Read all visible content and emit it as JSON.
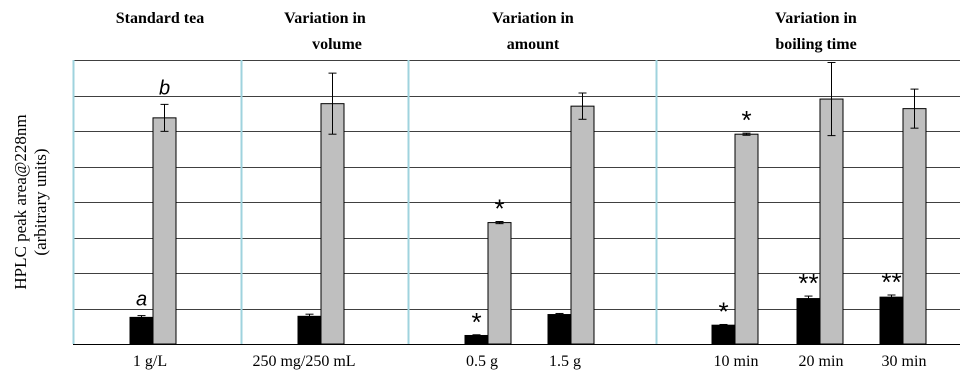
{
  "chart_data": {
    "type": "bar",
    "ylabel_lines": [
      "HPLC peak area@228nm",
      "(arbitrary units)"
    ],
    "ylim": [
      0,
      8
    ],
    "grid": true,
    "gridlines": [
      1,
      2,
      3,
      4,
      5,
      6,
      7,
      8
    ],
    "colors": {
      "black_series": "#000000",
      "gray_series": "#bfbfbf",
      "group_dividers": "#9fd3de",
      "grid": "#000000"
    },
    "groups": [
      {
        "header_lines": [
          "Standard tea"
        ],
        "categories": [
          "1 g/L"
        ]
      },
      {
        "header_lines": [
          "Variation in",
          "volume"
        ],
        "categories": [
          "250 mg/250 mL"
        ]
      },
      {
        "header_lines": [
          "Variation in",
          "amount"
        ],
        "categories": [
          "0.5 g",
          "1.5 g"
        ]
      },
      {
        "header_lines": [
          "Variation in",
          "boiling time"
        ],
        "categories": [
          "10 min",
          "20 min",
          "30 min"
        ]
      }
    ],
    "categories": [
      "1 g/L",
      "250 mg/250 mL",
      "0.5 g",
      "1.5 g",
      "10 min",
      "20 min",
      "30 min"
    ],
    "series": [
      {
        "color": "#000000",
        "values": [
          0.75,
          0.78,
          0.24,
          0.83,
          0.53,
          1.28,
          1.32
        ],
        "errors": [
          0.05,
          0.06,
          0.02,
          0.03,
          0.02,
          0.07,
          0.06
        ],
        "annotations": [
          "a",
          "",
          "*",
          "",
          "*",
          "**",
          "**"
        ]
      },
      {
        "color": "#bfbfbf",
        "values": [
          6.37,
          6.77,
          3.42,
          6.7,
          5.91,
          6.9,
          6.63
        ],
        "errors": [
          0.38,
          0.86,
          0.03,
          0.37,
          0.03,
          1.03,
          0.55
        ],
        "annotations": [
          "b",
          "",
          "*",
          "",
          "*",
          "",
          ""
        ]
      }
    ]
  }
}
